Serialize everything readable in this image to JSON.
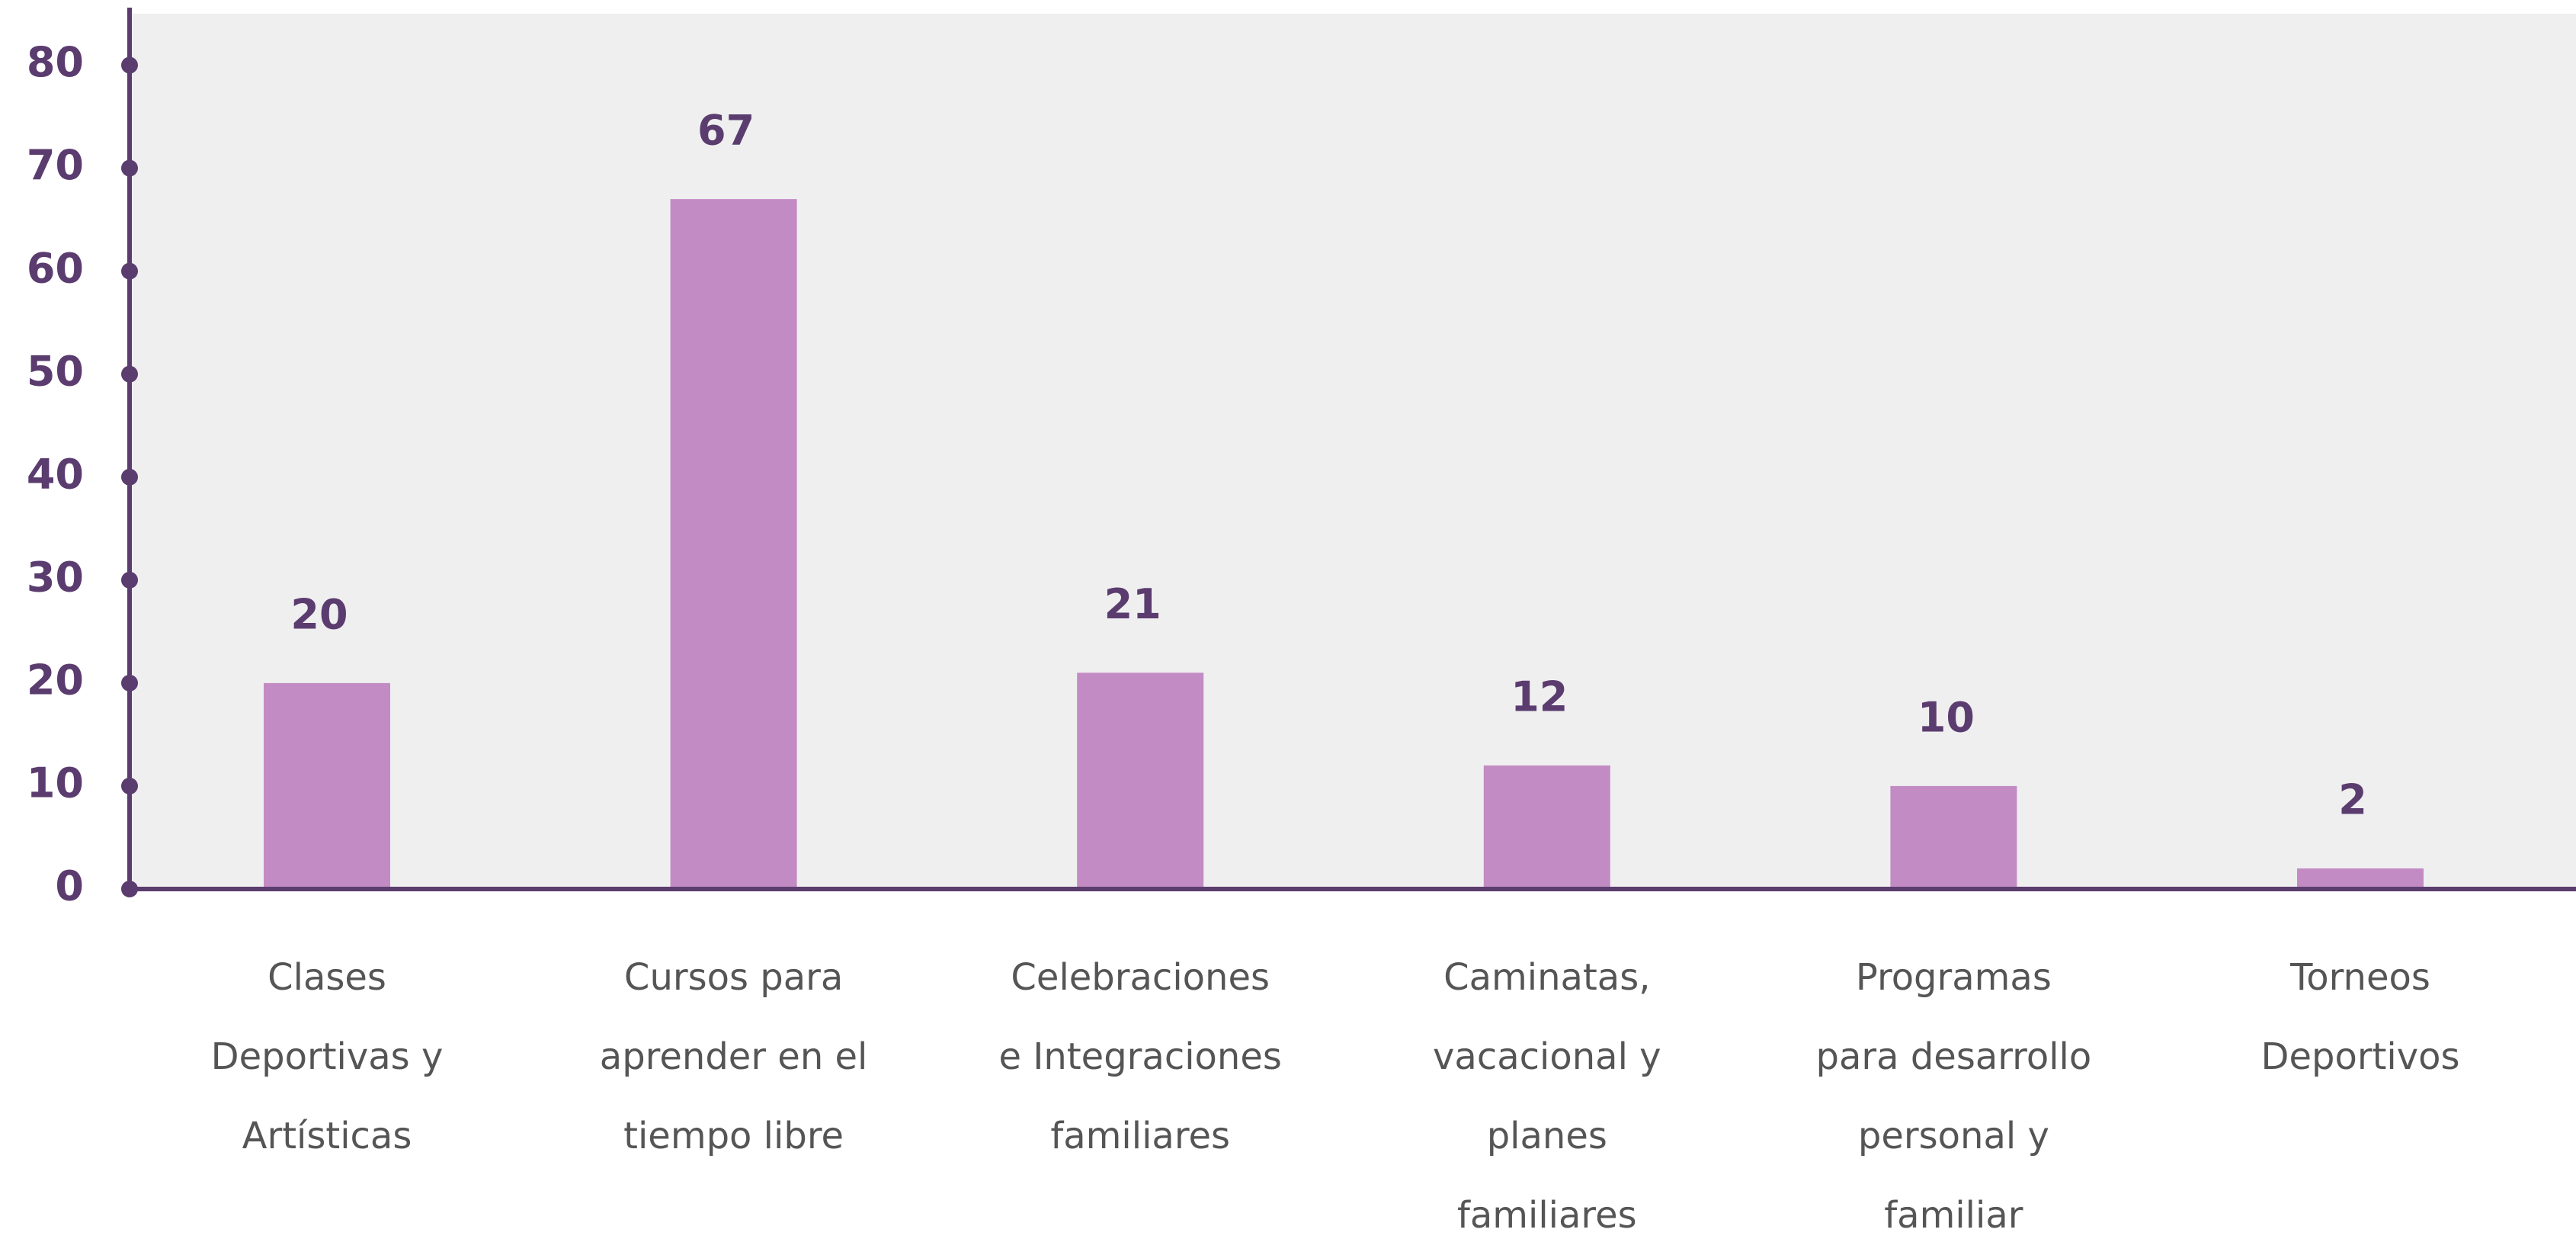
{
  "chart_data": {
    "type": "bar",
    "categories": [
      "Clases Deportivas y Artísticas",
      "Cursos para aprender en el tiempo libre",
      "Celebraciones e Integraciones familiares",
      "Caminatas, vacacional y planes familiares",
      "Programas para desarrollo personal y familiar",
      "Torneos Deportivos"
    ],
    "values": [
      20,
      67,
      21,
      12,
      10,
      2
    ],
    "color": "#c38bc4",
    "ylim": [
      0,
      85
    ],
    "yticks": [
      0,
      10,
      20,
      30,
      40,
      50,
      60,
      70,
      80
    ],
    "grid": false
  }
}
